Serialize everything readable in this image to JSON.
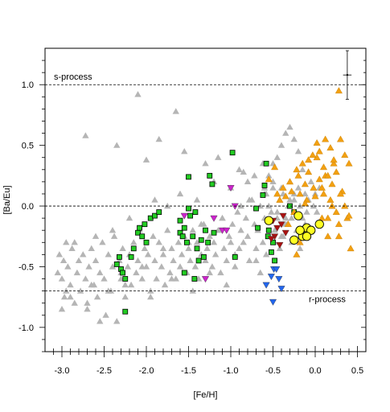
{
  "chart_data": {
    "type": "scatter",
    "title": "",
    "xlabel": "[Fe/H]",
    "ylabel": "[Ba/Eu]",
    "xlim": [
      -3.2,
      0.6
    ],
    "ylim": [
      -1.2,
      1.3
    ],
    "xticks": [
      -3.0,
      -2.5,
      -2.0,
      -1.5,
      -1.0,
      -0.5,
      0.0,
      0.5
    ],
    "xtick_labels": [
      "-3.0",
      "-2.5",
      "-2.0",
      "-1.5",
      "-1.0",
      "-0.5",
      "0.0",
      "0.5"
    ],
    "yticks": [
      -1.0,
      -0.5,
      0.0,
      0.5,
      1.0
    ],
    "ytick_labels": [
      "-1.0",
      "-0.5",
      "0.0",
      "0.5",
      "1.0"
    ],
    "grid": false,
    "legend": "none",
    "reference_lines": [
      {
        "label": "s-process",
        "y": 1.0
      },
      {
        "label": "",
        "y": 0.0
      },
      {
        "label": "r-process",
        "y": -0.7
      }
    ],
    "error_bar": {
      "x": 0.38,
      "y": 1.08,
      "xerr": 0.05,
      "yerr": 0.2
    },
    "series": [
      {
        "marker": "triangle-up",
        "color": "#b5b5b5",
        "x": [
          -3.05,
          -3.03,
          -3.0,
          -2.98,
          -2.97,
          -2.95,
          -2.93,
          -2.9,
          -2.88,
          -2.85,
          -2.82,
          -2.8,
          -2.78,
          -2.75,
          -2.72,
          -2.7,
          -2.68,
          -2.65,
          -2.62,
          -2.6,
          -2.58,
          -2.55,
          -2.52,
          -2.5,
          -2.48,
          -2.45,
          -2.42,
          -2.4,
          -2.38,
          -2.35,
          -2.32,
          -2.3,
          -2.28,
          -2.25,
          -2.22,
          -2.2,
          -2.18,
          -2.15,
          -2.12,
          -2.1,
          -2.08,
          -2.05,
          -2.02,
          -2.0,
          -1.98,
          -1.95,
          -1.92,
          -1.9,
          -1.88,
          -1.85,
          -1.82,
          -1.8,
          -1.78,
          -1.75,
          -1.72,
          -1.7,
          -1.68,
          -1.65,
          -1.62,
          -1.6,
          -1.58,
          -1.55,
          -1.52,
          -1.5,
          -1.48,
          -1.45,
          -1.42,
          -1.4,
          -1.38,
          -1.35,
          -1.32,
          -1.3,
          -1.28,
          -1.25,
          -1.22,
          -1.2,
          -1.18,
          -1.15,
          -1.12,
          -1.1,
          -1.08,
          -1.05,
          -1.02,
          -1.0,
          -0.98,
          -0.95,
          -0.92,
          -0.9,
          -0.88,
          -0.85,
          -0.82,
          -0.8,
          -0.78,
          -0.75,
          -0.72,
          -0.7,
          -0.68,
          -0.65,
          -0.62,
          -0.6,
          -0.58,
          -0.55,
          -0.52,
          -0.5,
          -0.48,
          -0.45,
          -0.42,
          -0.4,
          -0.38,
          -0.35,
          -0.32,
          -0.3,
          -0.28,
          -0.25,
          -0.22,
          -0.2,
          -0.18,
          -0.15,
          -0.12,
          -0.1,
          -0.08,
          -0.05,
          -0.02,
          0.0,
          0.02,
          0.05,
          -2.72,
          -2.35,
          -2.0,
          -2.1,
          -1.65,
          -1.85,
          -1.55,
          -1.3,
          -1.15,
          -0.85,
          -0.6,
          -0.5,
          -0.45,
          -0.4,
          -0.35,
          -0.3,
          -0.25,
          -0.2,
          -0.15,
          -0.55,
          -0.62,
          -0.72,
          -0.8,
          -0.9,
          -1.0,
          -1.2,
          -1.4,
          -1.6,
          -1.75,
          -1.9,
          -2.2,
          -2.4,
          -2.6,
          -2.85,
          -3.0,
          -2.95,
          -2.7,
          -2.55,
          -2.25,
          -1.95,
          -1.7,
          -1.45,
          -1.25,
          -1.05,
          -0.95,
          -0.7,
          -0.65,
          -0.58,
          -0.48,
          -0.42,
          -0.38,
          -0.33,
          -0.28,
          -0.22,
          -0.18,
          -0.12,
          -0.35,
          -0.45,
          -0.55,
          -0.3,
          -0.25,
          -0.4,
          -0.5,
          -0.6,
          -0.78,
          -0.88,
          -1.1,
          -1.35,
          -1.5,
          -1.8,
          -2.05,
          -2.3,
          -2.45,
          -2.65,
          -2.9
        ],
        "y": [
          -0.55,
          -0.4,
          -0.6,
          -0.45,
          -0.75,
          -0.3,
          -0.5,
          -0.65,
          -0.35,
          -0.8,
          -0.55,
          -0.45,
          -0.7,
          -0.4,
          -0.6,
          -0.85,
          -0.5,
          -0.35,
          -0.65,
          -0.45,
          -0.75,
          -0.55,
          -0.3,
          -0.6,
          -0.9,
          -0.4,
          -0.7,
          -0.5,
          -0.25,
          -0.95,
          -0.45,
          -0.6,
          -0.35,
          -0.75,
          -0.5,
          -0.4,
          -0.65,
          -0.3,
          -0.55,
          -0.45,
          -0.2,
          -0.6,
          -0.35,
          -0.5,
          -0.4,
          -0.7,
          -0.25,
          -0.45,
          -0.6,
          -0.3,
          -0.5,
          -0.4,
          -0.65,
          -0.2,
          -0.55,
          -0.35,
          -0.45,
          -0.6,
          -0.3,
          -0.5,
          -0.4,
          -0.25,
          -0.55,
          -0.35,
          -0.45,
          -0.2,
          -0.5,
          -0.3,
          -0.6,
          -0.4,
          -0.15,
          -0.45,
          -0.35,
          -0.25,
          -0.5,
          -0.3,
          -0.4,
          -0.2,
          -0.55,
          -0.1,
          -0.35,
          -0.45,
          -0.25,
          -0.3,
          -0.15,
          -0.4,
          -0.05,
          -0.35,
          -0.2,
          -0.3,
          -0.1,
          -0.25,
          -0.45,
          0.05,
          -0.15,
          -0.35,
          -0.2,
          0.0,
          -0.3,
          -0.1,
          0.1,
          -0.25,
          -0.05,
          0.15,
          -0.2,
          -0.1,
          0.05,
          -0.25,
          0.1,
          -0.15,
          0.0,
          0.2,
          -0.1,
          0.05,
          -0.2,
          0.15,
          0.0,
          -0.1,
          0.1,
          -0.05,
          0.05,
          0.2,
          0.0,
          0.1,
          -0.05,
          0.15,
          0.58,
          0.5,
          0.38,
          0.92,
          0.78,
          0.55,
          0.45,
          0.35,
          0.4,
          0.28,
          0.1,
          0.35,
          0.4,
          0.5,
          0.6,
          0.65,
          0.55,
          0.45,
          0.3,
          0.25,
          0.35,
          0.25,
          0.2,
          0.3,
          0.15,
          0.2,
          0.05,
          0.1,
          0.0,
          0.05,
          -0.1,
          -0.2,
          -0.25,
          -0.3,
          -0.85,
          -0.7,
          -0.8,
          -0.95,
          -0.65,
          -0.75,
          -0.6,
          -0.7,
          -0.55,
          -0.65,
          -0.5,
          -0.45,
          -0.55,
          -0.4,
          -0.3,
          -0.35,
          -0.25,
          -0.15,
          -0.3,
          -0.2,
          -0.35,
          -0.15,
          -0.1,
          -0.05,
          0.0,
          0.05,
          0.1,
          0.15,
          0.2,
          0.15,
          0.05,
          0.0,
          -0.1,
          -0.15,
          -0.3,
          -0.35,
          -0.5,
          -0.55,
          -0.7,
          -0.65,
          -0.75
        ]
      },
      {
        "marker": "square",
        "color": "#22cc22",
        "x": [
          -2.32,
          -2.35,
          -2.3,
          -2.28,
          -2.25,
          -2.18,
          -2.15,
          -2.1,
          -2.08,
          -2.05,
          -2.02,
          -2.0,
          -1.95,
          -1.9,
          -1.85,
          -1.6,
          -1.57,
          -1.55,
          -1.52,
          -1.5,
          -1.48,
          -1.45,
          -1.42,
          -1.4,
          -1.38,
          -1.35,
          -1.32,
          -1.3,
          -1.27,
          -1.25,
          -1.22,
          -1.55,
          -1.5,
          -1.6,
          -1.43,
          -1.2,
          -0.98,
          -0.95,
          -0.7,
          -0.68,
          -0.62,
          -0.6,
          -0.58,
          -0.56,
          -0.55,
          -0.5,
          -0.52,
          -0.48,
          -0.3,
          -0.25,
          -2.25
        ],
        "y": [
          -0.42,
          -0.48,
          -0.52,
          -0.55,
          -0.6,
          -0.42,
          -0.35,
          -0.22,
          -0.18,
          -0.25,
          -0.15,
          -0.3,
          -0.1,
          -0.08,
          -0.05,
          -0.22,
          -0.25,
          -0.18,
          -0.3,
          -0.02,
          -0.08,
          -0.25,
          -0.05,
          -0.35,
          -0.45,
          -0.28,
          -0.42,
          -0.2,
          -0.3,
          0.25,
          0.18,
          -0.55,
          0.24,
          -0.12,
          -0.6,
          -0.22,
          0.44,
          -0.42,
          -0.02,
          -0.18,
          0.09,
          0.17,
          0.35,
          -0.25,
          -0.2,
          -0.3,
          -0.38,
          -0.45,
          0.0,
          -0.05,
          -0.87
        ]
      },
      {
        "marker": "triangle-down",
        "color": "#cc22cc",
        "x": [
          -1.55,
          -1.2,
          -1.1,
          -1.05,
          -1.0,
          -0.95,
          -1.3
        ],
        "y": [
          -0.08,
          -0.1,
          -0.2,
          -0.2,
          0.15,
          0.0,
          -0.6
        ]
      },
      {
        "marker": "triangle-down",
        "color": "#2266ee",
        "x": [
          -0.58,
          -0.52,
          -0.49,
          -0.46,
          -0.43,
          -0.4,
          -0.5
        ],
        "y": [
          -0.65,
          -0.58,
          -0.52,
          -0.52,
          -0.6,
          -0.68,
          -0.79
        ]
      },
      {
        "marker": "triangle-down",
        "color": "#aa1111",
        "x": [
          -0.5,
          -0.45,
          -0.4,
          -0.35,
          -0.42,
          -0.48,
          -0.52,
          -0.38
        ],
        "y": [
          -0.12,
          -0.18,
          -0.15,
          -0.22,
          -0.32,
          -0.25,
          -0.27,
          -0.08
        ]
      },
      {
        "marker": "triangle-up",
        "color": "#f2a012",
        "x": [
          -0.45,
          -0.42,
          -0.38,
          -0.35,
          -0.32,
          -0.3,
          -0.28,
          -0.25,
          -0.22,
          -0.2,
          -0.18,
          -0.15,
          -0.12,
          -0.1,
          -0.08,
          -0.05,
          -0.02,
          0.0,
          0.02,
          0.05,
          0.08,
          0.1,
          0.12,
          0.15,
          0.18,
          0.2,
          0.22,
          0.25,
          0.28,
          0.3,
          0.32,
          0.35,
          0.38,
          0.4,
          0.42,
          -0.55,
          -0.48,
          0.28,
          0.12,
          0.18,
          0.05,
          -0.08,
          0.02,
          0.35,
          0.22,
          0.1,
          -0.03,
          0.15,
          0.25,
          0.08,
          -0.12,
          0.3,
          0.2,
          0.15,
          -0.18,
          -0.22,
          0.4,
          0.28
        ],
        "y": [
          0.1,
          0.05,
          0.15,
          0.08,
          -0.15,
          0.2,
          0.12,
          -0.05,
          0.3,
          0.25,
          0.1,
          0.35,
          0.18,
          0.05,
          0.28,
          -0.2,
          0.15,
          0.08,
          0.4,
          0.22,
          -0.1,
          0.1,
          0.25,
          -0.25,
          0.05,
          0.18,
          0.35,
          -0.05,
          -0.15,
          0.55,
          0.12,
          0.0,
          -0.1,
          0.35,
          -0.35,
          0.22,
          0.32,
          0.95,
          0.55,
          0.48,
          0.45,
          0.38,
          0.52,
          0.42,
          0.38,
          0.32,
          0.42,
          0.25,
          0.28,
          0.15,
          0.02,
          0.1,
          0.0,
          -0.1,
          -0.3,
          -0.4,
          -0.08,
          -0.25
        ]
      },
      {
        "marker": "circle",
        "color": "#ffff22",
        "x": [
          -0.55,
          -0.2,
          -0.1,
          -0.05,
          0.05,
          -0.25,
          -0.15,
          -0.1,
          -0.18
        ],
        "y": [
          -0.12,
          -0.08,
          -0.18,
          -0.2,
          -0.15,
          -0.28,
          -0.25,
          -0.25,
          -0.2
        ]
      }
    ]
  }
}
